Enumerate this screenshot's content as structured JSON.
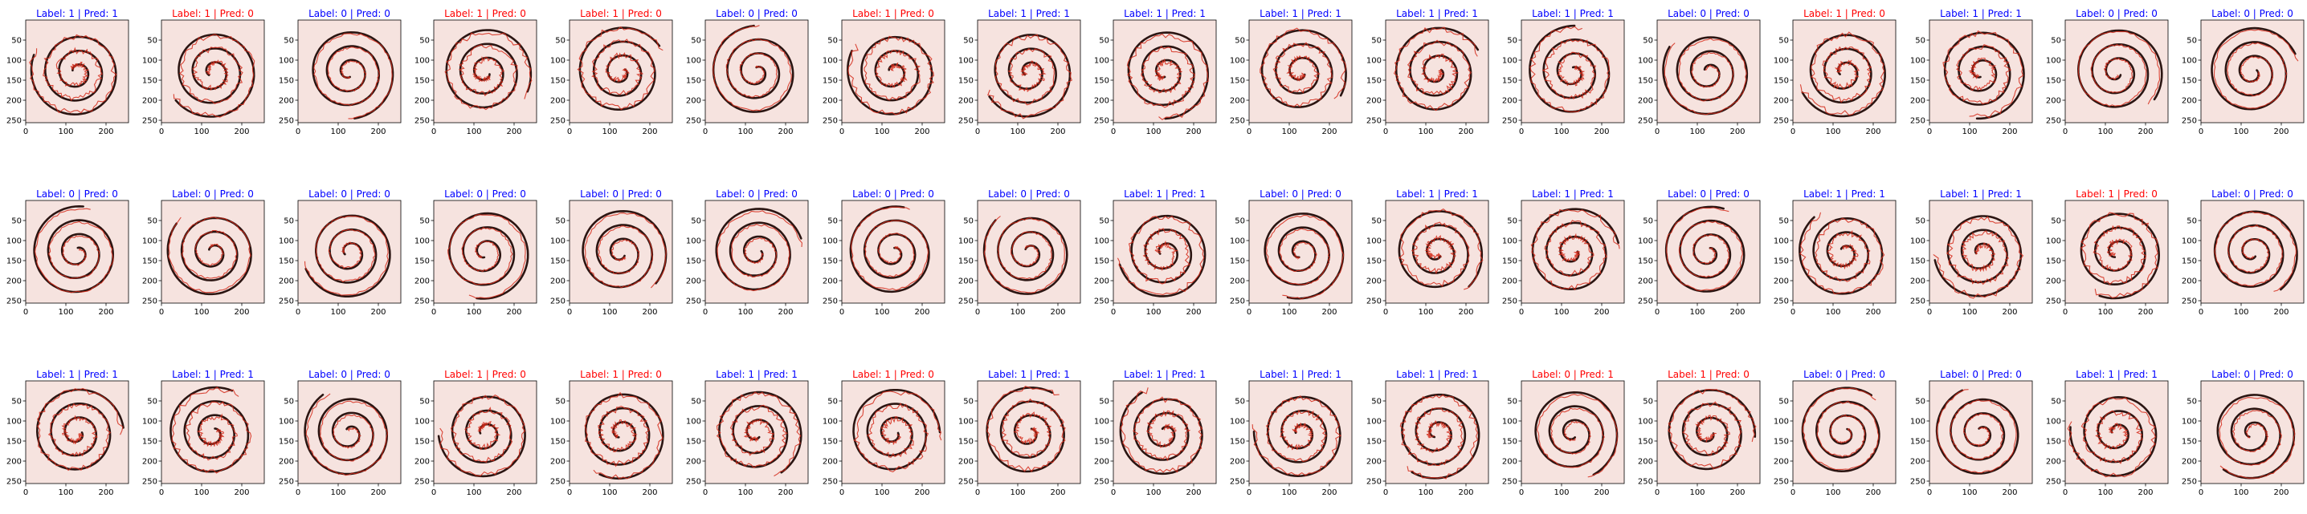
{
  "figure": {
    "rows": 3,
    "cols": 17,
    "colors": {
      "correct": "#0000ff",
      "wrong": "#ff0000",
      "spiral": "#2b1512",
      "trace": "#d42a1a",
      "background": "#f6e3df"
    }
  },
  "chart_data": {
    "type": "image-grid",
    "xlim": [
      0,
      256
    ],
    "ylim": [
      256,
      0
    ],
    "xticks": [
      0,
      100,
      200
    ],
    "yticks": [
      50,
      100,
      150,
      200,
      250
    ],
    "panels": [
      {
        "title": "Label: 1 | Pred: 1",
        "label": 1,
        "pred": 1
      },
      {
        "title": "Label: 1 | Pred: 0",
        "label": 1,
        "pred": 0
      },
      {
        "title": "Label: 0 | Pred: 0",
        "label": 0,
        "pred": 0
      },
      {
        "title": "Label: 1 | Pred: 0",
        "label": 1,
        "pred": 0
      },
      {
        "title": "Label: 1 | Pred: 0",
        "label": 1,
        "pred": 0
      },
      {
        "title": "Label: 0 | Pred: 0",
        "label": 0,
        "pred": 0
      },
      {
        "title": "Label: 1 | Pred: 0",
        "label": 1,
        "pred": 0
      },
      {
        "title": "Label: 1 | Pred: 1",
        "label": 1,
        "pred": 1
      },
      {
        "title": "Label: 1 | Pred: 1",
        "label": 1,
        "pred": 1
      },
      {
        "title": "Label: 1 | Pred: 1",
        "label": 1,
        "pred": 1
      },
      {
        "title": "Label: 1 | Pred: 1",
        "label": 1,
        "pred": 1
      },
      {
        "title": "Label: 1 | Pred: 1",
        "label": 1,
        "pred": 1
      },
      {
        "title": "Label: 0 | Pred: 0",
        "label": 0,
        "pred": 0
      },
      {
        "title": "Label: 1 | Pred: 0",
        "label": 1,
        "pred": 0
      },
      {
        "title": "Label: 1 | Pred: 1",
        "label": 1,
        "pred": 1
      },
      {
        "title": "Label: 0 | Pred: 0",
        "label": 0,
        "pred": 0
      },
      {
        "title": "Label: 0 | Pred: 0",
        "label": 0,
        "pred": 0
      },
      {
        "title": "Label: 0 | Pred: 0",
        "label": 0,
        "pred": 0
      },
      {
        "title": "Label: 0 | Pred: 0",
        "label": 0,
        "pred": 0
      },
      {
        "title": "Label: 0 | Pred: 0",
        "label": 0,
        "pred": 0
      },
      {
        "title": "Label: 0 | Pred: 0",
        "label": 0,
        "pred": 0
      },
      {
        "title": "Label: 0 | Pred: 0",
        "label": 0,
        "pred": 0
      },
      {
        "title": "Label: 0 | Pred: 0",
        "label": 0,
        "pred": 0
      },
      {
        "title": "Label: 0 | Pred: 0",
        "label": 0,
        "pred": 0
      },
      {
        "title": "Label: 0 | Pred: 0",
        "label": 0,
        "pred": 0
      },
      {
        "title": "Label: 1 | Pred: 1",
        "label": 1,
        "pred": 1
      },
      {
        "title": "Label: 0 | Pred: 0",
        "label": 0,
        "pred": 0
      },
      {
        "title": "Label: 1 | Pred: 1",
        "label": 1,
        "pred": 1
      },
      {
        "title": "Label: 1 | Pred: 1",
        "label": 1,
        "pred": 1
      },
      {
        "title": "Label: 0 | Pred: 0",
        "label": 0,
        "pred": 0
      },
      {
        "title": "Label: 1 | Pred: 1",
        "label": 1,
        "pred": 1
      },
      {
        "title": "Label: 1 | Pred: 1",
        "label": 1,
        "pred": 1
      },
      {
        "title": "Label: 1 | Pred: 0",
        "label": 1,
        "pred": 0
      },
      {
        "title": "Label: 0 | Pred: 0",
        "label": 0,
        "pred": 0
      },
      {
        "title": "Label: 1 | Pred: 1",
        "label": 1,
        "pred": 1
      },
      {
        "title": "Label: 1 | Pred: 1",
        "label": 1,
        "pred": 1
      },
      {
        "title": "Label: 0 | Pred: 0",
        "label": 0,
        "pred": 0
      },
      {
        "title": "Label: 1 | Pred: 0",
        "label": 1,
        "pred": 0
      },
      {
        "title": "Label: 1 | Pred: 0",
        "label": 1,
        "pred": 0
      },
      {
        "title": "Label: 1 | Pred: 1",
        "label": 1,
        "pred": 1
      },
      {
        "title": "Label: 1 | Pred: 0",
        "label": 1,
        "pred": 0
      },
      {
        "title": "Label: 1 | Pred: 1",
        "label": 1,
        "pred": 1
      },
      {
        "title": "Label: 1 | Pred: 1",
        "label": 1,
        "pred": 1
      },
      {
        "title": "Label: 1 | Pred: 1",
        "label": 1,
        "pred": 1
      },
      {
        "title": "Label: 1 | Pred: 1",
        "label": 1,
        "pred": 1
      },
      {
        "title": "Label: 0 | Pred: 1",
        "label": 0,
        "pred": 1
      },
      {
        "title": "Label: 1 | Pred: 0",
        "label": 1,
        "pred": 0
      },
      {
        "title": "Label: 0 | Pred: 0",
        "label": 0,
        "pred": 0
      },
      {
        "title": "Label: 0 | Pred: 0",
        "label": 0,
        "pred": 0
      },
      {
        "title": "Label: 1 | Pred: 1",
        "label": 1,
        "pred": 1
      },
      {
        "title": "Label: 0 | Pred: 0",
        "label": 0,
        "pred": 0
      }
    ]
  }
}
